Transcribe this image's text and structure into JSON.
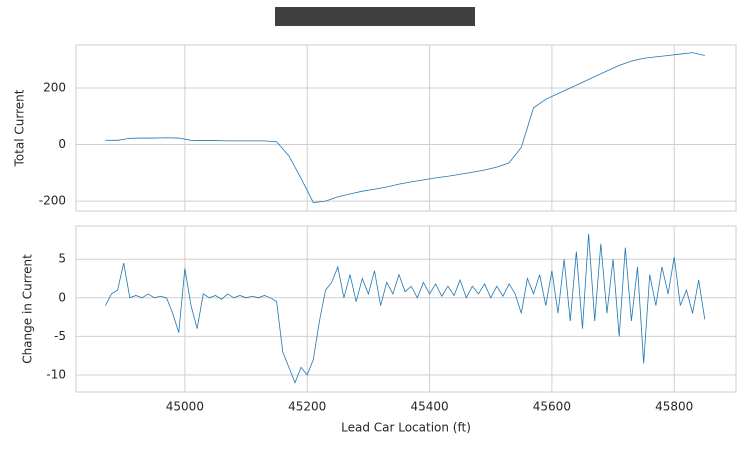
{
  "chart_data": [
    {
      "type": "line",
      "ylabel": "Total Current",
      "color": "#1f77b4",
      "grid": true,
      "xlim": [
        44822,
        45901
      ],
      "ylim": [
        -235,
        352
      ],
      "yticks": [
        -200,
        0,
        200
      ],
      "x": [
        44870,
        44890,
        44910,
        44930,
        44950,
        44970,
        44990,
        45010,
        45030,
        45050,
        45070,
        45090,
        45110,
        45130,
        45150,
        45170,
        45190,
        45210,
        45230,
        45250,
        45270,
        45290,
        45310,
        45330,
        45350,
        45370,
        45390,
        45410,
        45430,
        45450,
        45470,
        45490,
        45510,
        45530,
        45550,
        45570,
        45590,
        45610,
        45630,
        45650,
        45670,
        45690,
        45710,
        45730,
        45750,
        45770,
        45790,
        45810,
        45830,
        45850
      ],
      "values": [
        15,
        15,
        22,
        23,
        23,
        24,
        23,
        15,
        14,
        14,
        13,
        13,
        13,
        13,
        10,
        -40,
        -120,
        -205,
        -200,
        -185,
        -175,
        -165,
        -158,
        -150,
        -140,
        -132,
        -125,
        -118,
        -112,
        -105,
        -98,
        -90,
        -80,
        -65,
        -10,
        130,
        160,
        180,
        200,
        220,
        240,
        260,
        280,
        295,
        305,
        310,
        315,
        320,
        325,
        315
      ]
    },
    {
      "type": "line",
      "ylabel": "Change in Current",
      "xlabel": "Lead Car Location (ft)",
      "color": "#1f77b4",
      "grid": true,
      "xlim": [
        44822,
        45901
      ],
      "ylim": [
        -12.2,
        9.3
      ],
      "yticks": [
        -10,
        -5,
        0,
        5
      ],
      "xticks": [
        45000,
        45200,
        45400,
        45600,
        45800
      ],
      "x": [
        44870,
        44880,
        44890,
        44900,
        44910,
        44920,
        44930,
        44940,
        44950,
        44960,
        44970,
        44980,
        44990,
        45000,
        45010,
        45020,
        45030,
        45040,
        45050,
        45060,
        45070,
        45080,
        45090,
        45100,
        45110,
        45120,
        45130,
        45140,
        45150,
        45160,
        45170,
        45180,
        45190,
        45200,
        45210,
        45220,
        45230,
        45240,
        45250,
        45260,
        45270,
        45280,
        45290,
        45300,
        45310,
        45320,
        45330,
        45340,
        45350,
        45360,
        45370,
        45380,
        45390,
        45400,
        45410,
        45420,
        45430,
        45440,
        45450,
        45460,
        45470,
        45480,
        45490,
        45500,
        45510,
        45520,
        45530,
        45540,
        45550,
        45560,
        45570,
        45580,
        45590,
        45600,
        45610,
        45620,
        45630,
        45640,
        45650,
        45660,
        45670,
        45680,
        45690,
        45700,
        45710,
        45720,
        45730,
        45740,
        45750,
        45760,
        45770,
        45780,
        45790,
        45800,
        45810,
        45820,
        45830,
        45840,
        45850
      ],
      "values": [
        -1,
        0.5,
        1,
        4.5,
        0,
        0.3,
        0,
        0.5,
        0,
        0.2,
        0,
        -2,
        -4.5,
        3.8,
        -1,
        -4,
        0.5,
        0,
        0.3,
        -0.2,
        0.5,
        0,
        0.3,
        0,
        0.2,
        0,
        0.3,
        0,
        -0.5,
        -7,
        -9,
        -11,
        -9,
        -10,
        -8,
        -3,
        1,
        2,
        4,
        0,
        3,
        -0.5,
        2.5,
        0.5,
        3.5,
        -1,
        2,
        0.5,
        3,
        0.8,
        1.5,
        0,
        2,
        0.5,
        1.8,
        0.2,
        1.5,
        0.3,
        2.3,
        0,
        1.5,
        0.5,
        1.8,
        0,
        1.5,
        0.2,
        1.8,
        0.5,
        -2,
        2.5,
        0.5,
        3,
        -1,
        3.5,
        -2,
        5,
        -3,
        6,
        -4,
        8.3,
        -3,
        7,
        -2,
        5,
        -5,
        6.5,
        -3,
        4,
        -8.5,
        3,
        -1,
        4,
        0.5,
        5.3,
        -1,
        1,
        -2,
        2.3,
        -2.8
      ]
    }
  ]
}
